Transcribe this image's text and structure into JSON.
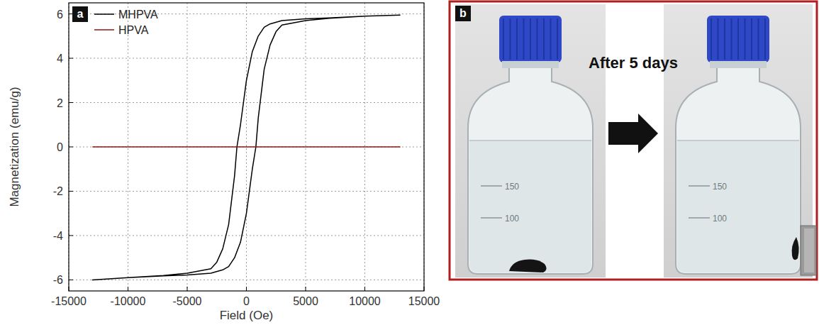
{
  "chart_data": {
    "type": "line",
    "panel_label": "a",
    "x_label": "Field (Oe)",
    "y_label": "Magnetization (emu/g)",
    "xlim": [
      -15000,
      15000
    ],
    "xticks": [
      -15000,
      -10000,
      -5000,
      0,
      5000,
      10000,
      15000
    ],
    "ylim": [
      -6.5,
      6.5
    ],
    "yticks": [
      -6,
      -4,
      -2,
      0,
      2,
      4,
      6
    ],
    "grid": true,
    "legend": "upper left",
    "series": [
      {
        "name": "MHPVA",
        "color": "#000000",
        "x": [
          13000,
          10000,
          7000,
          5000,
          3000,
          2000,
          1500,
          1000,
          500,
          0,
          -500,
          -800,
          -1000,
          -1500,
          -2000,
          -2500,
          -3000,
          -5000,
          -7000,
          -10000,
          -13000,
          -10000,
          -7000,
          -5000,
          -3000,
          -2000,
          -1500,
          -1000,
          -500,
          0,
          500,
          800,
          1000,
          1500,
          2000,
          2500,
          3000,
          5000,
          7000,
          10000,
          13000
        ],
        "values": [
          5.95,
          5.9,
          5.82,
          5.78,
          5.7,
          5.55,
          5.4,
          5.0,
          4.3,
          3.0,
          1.0,
          0,
          -1.3,
          -3.5,
          -4.6,
          -5.2,
          -5.5,
          -5.7,
          -5.8,
          -5.9,
          -6.0,
          -5.9,
          -5.82,
          -5.78,
          -5.7,
          -5.55,
          -5.4,
          -5.0,
          -4.3,
          -3.0,
          -1.0,
          0,
          1.3,
          3.5,
          4.6,
          5.2,
          5.5,
          5.7,
          5.8,
          5.9,
          5.95
        ]
      },
      {
        "name": "HPVA",
        "color": "#8b1a1a",
        "x": [
          -13000,
          -7000,
          13000
        ],
        "values": [
          0,
          0,
          0
        ]
      }
    ]
  },
  "photo": {
    "panel_label": "b",
    "caption": "After 5 days",
    "graduations": [
      "150",
      "100"
    ]
  }
}
